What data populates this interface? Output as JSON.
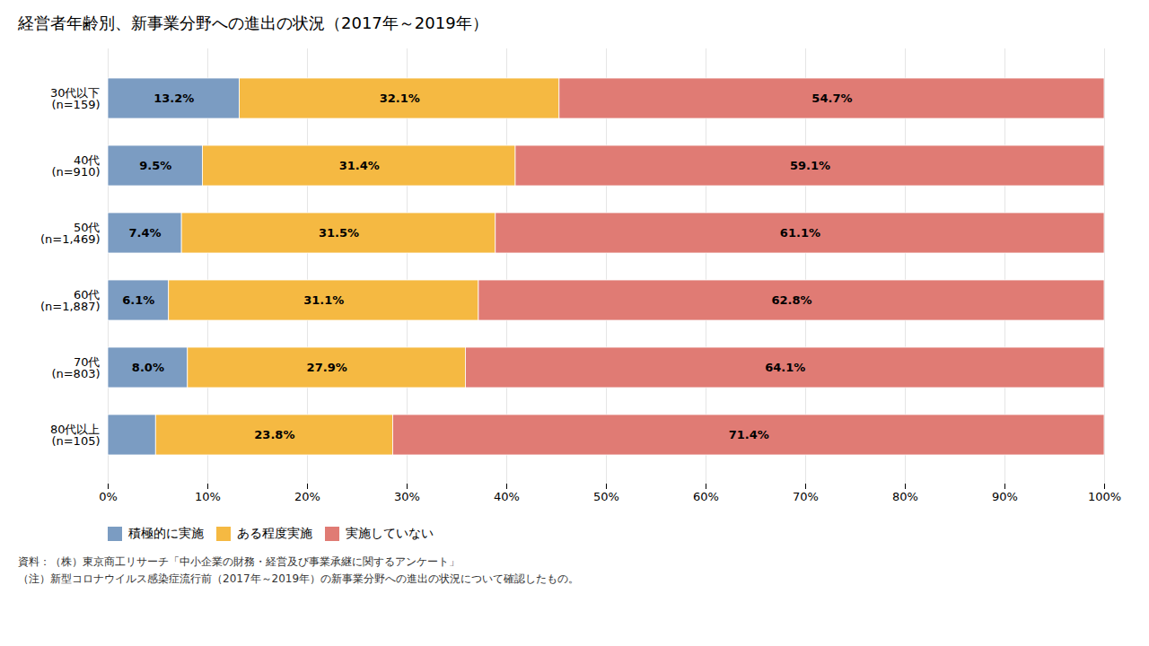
{
  "chart_data": {
    "type": "bar",
    "orientation": "horizontal",
    "stacked": true,
    "title": "経営者年齢別、新事業分野への進出の状況（2017年～2019年）",
    "categories": [
      "30代以下\n(n=159)",
      "40代\n(n=910)",
      "50代\n(n=1,469)",
      "60代\n(n=1,887)",
      "70代\n(n=803)",
      "80代以上\n(n=105)"
    ],
    "series": [
      {
        "name": "積極的に実施",
        "color": "#7B9CC2",
        "values": [
          13.2,
          9.5,
          7.4,
          6.1,
          8.0,
          4.8
        ],
        "value_labels": [
          "13.2%",
          "9.5%",
          "7.4%",
          "6.1%",
          "8.0%",
          null
        ]
      },
      {
        "name": "ある程度実施",
        "color": "#F5B942",
        "values": [
          32.1,
          31.4,
          31.5,
          31.1,
          27.9,
          23.8
        ],
        "value_labels": [
          "32.1%",
          "31.4%",
          "31.5%",
          "31.1%",
          "27.9%",
          "23.8%"
        ]
      },
      {
        "name": "実施していない",
        "color": "#E07B74",
        "values": [
          54.7,
          59.1,
          61.1,
          62.8,
          64.1,
          71.4
        ],
        "value_labels": [
          "54.7%",
          "59.1%",
          "61.1%",
          "62.8%",
          "64.1%",
          "71.4%"
        ]
      }
    ],
    "xlim": [
      0,
      100
    ],
    "xticks": [
      {
        "value": 0,
        "label": "0%"
      },
      {
        "value": 10,
        "label": "10%"
      },
      {
        "value": 20,
        "label": "20%"
      },
      {
        "value": 30,
        "label": "30%"
      },
      {
        "value": 40,
        "label": "40%"
      },
      {
        "value": 50,
        "label": "50%"
      },
      {
        "value": 60,
        "label": "60%"
      },
      {
        "value": 70,
        "label": "70%"
      },
      {
        "value": 80,
        "label": "80%"
      },
      {
        "value": 90,
        "label": "90%"
      },
      {
        "value": 100,
        "label": "100%"
      }
    ],
    "grid": true,
    "data_labels": true,
    "legend": "bottom",
    "annotations": [
      "資料：（株）東京商工リサーチ「中小企業の財務・経営及び事業承継に関するアンケート」",
      "（注）新型コロナウイルス感染症流行前（2017年～2019年）の新事業分野への進出の状況について確認したもの。"
    ]
  }
}
